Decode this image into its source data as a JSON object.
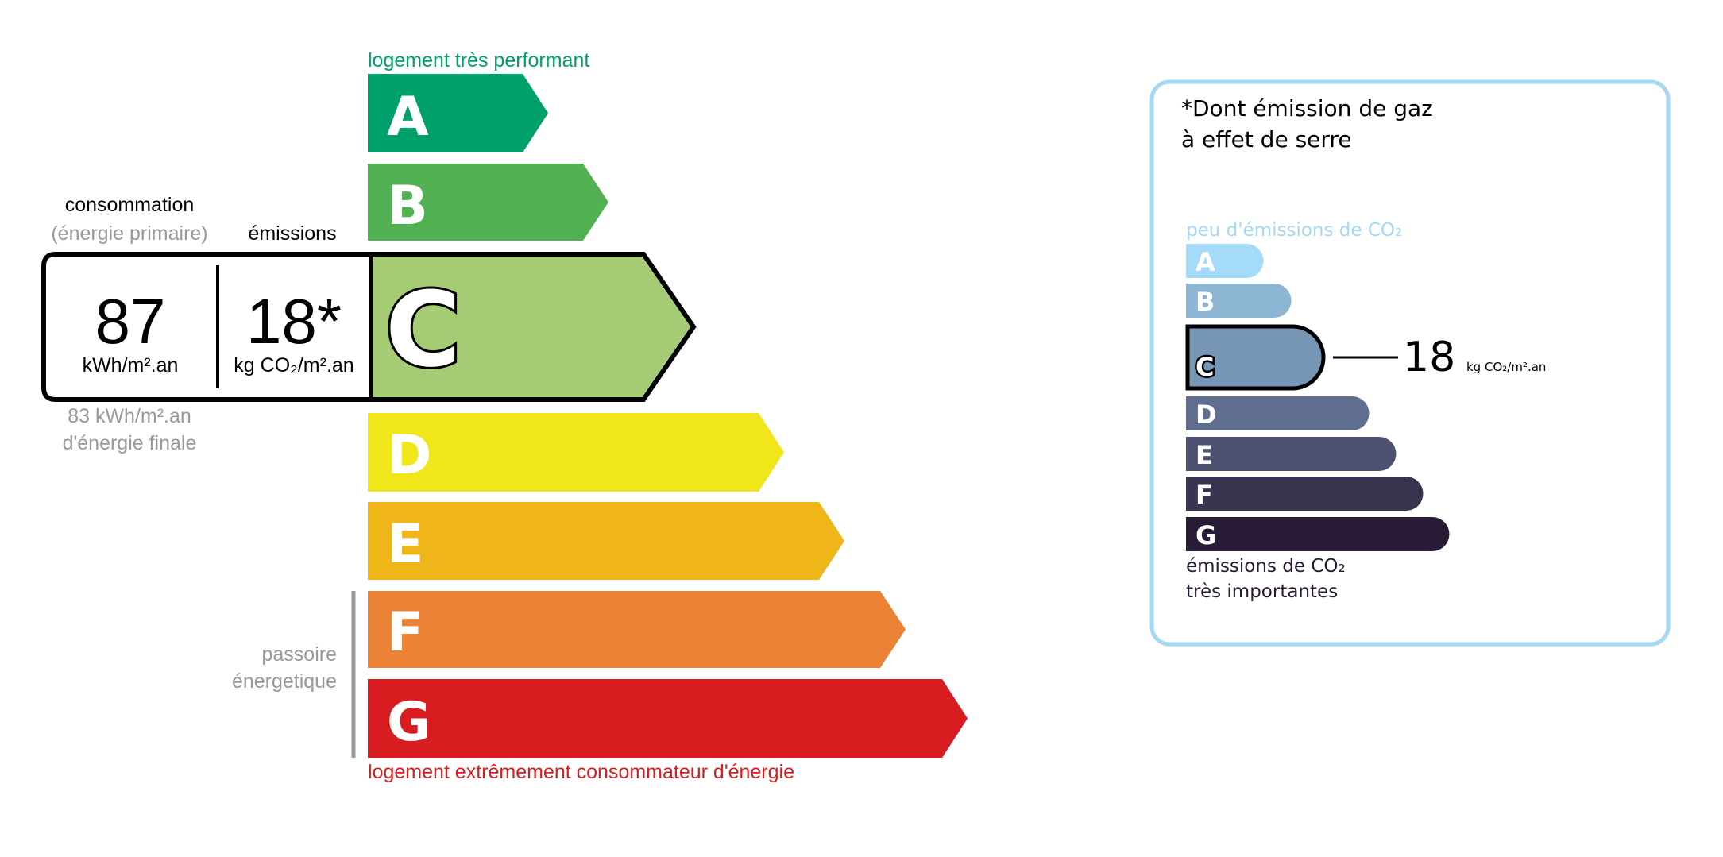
{
  "energy": {
    "top_label": "logement très performant",
    "bottom_label": "logement extrêmement consommateur d'énergie",
    "top_label_color": "#00a06d",
    "bottom_label_color": "#d71d20",
    "classes": [
      {
        "letter": "A",
        "color": "#00a06d"
      },
      {
        "letter": "B",
        "color": "#52b153"
      },
      {
        "letter": "C",
        "color": "#a5cc74"
      },
      {
        "letter": "D",
        "color": "#f0e61a"
      },
      {
        "letter": "E",
        "color": "#f0b519"
      },
      {
        "letter": "F",
        "color": "#eb8235"
      },
      {
        "letter": "G",
        "color": "#d71d20"
      }
    ],
    "current_class": "C",
    "consumption_label": "consommation",
    "consumption_sublabel": "(énergie primaire)",
    "emissions_label": "émissions",
    "consumption_value": "87",
    "consumption_unit": "kWh/m².an",
    "emissions_value": "18*",
    "emissions_unit": "kg CO₂/m².an",
    "final_energy_value": "83 kWh/m².an",
    "final_energy_label": "d'énergie finale",
    "passoire_line1": "passoire",
    "passoire_line2": "énergetique"
  },
  "ges": {
    "title_line1": "*Dont émission de gaz",
    "title_line2": "à effet de serre",
    "top_label": "peu d'émissions de CO₂",
    "bottom_label_line1": "émissions de CO₂",
    "bottom_label_line2": "très importantes",
    "border_color": "#a5d8f3",
    "classes": [
      {
        "letter": "A",
        "color": "#a4dbf8"
      },
      {
        "letter": "B",
        "color": "#8cb4d3"
      },
      {
        "letter": "C",
        "color": "#7795b4"
      },
      {
        "letter": "D",
        "color": "#5f6e8e"
      },
      {
        "letter": "E",
        "color": "#4d5170"
      },
      {
        "letter": "F",
        "color": "#393551"
      },
      {
        "letter": "G",
        "color": "#281b35"
      }
    ],
    "current_class": "C",
    "value": "18",
    "unit": "kg CO₂/m².an"
  }
}
